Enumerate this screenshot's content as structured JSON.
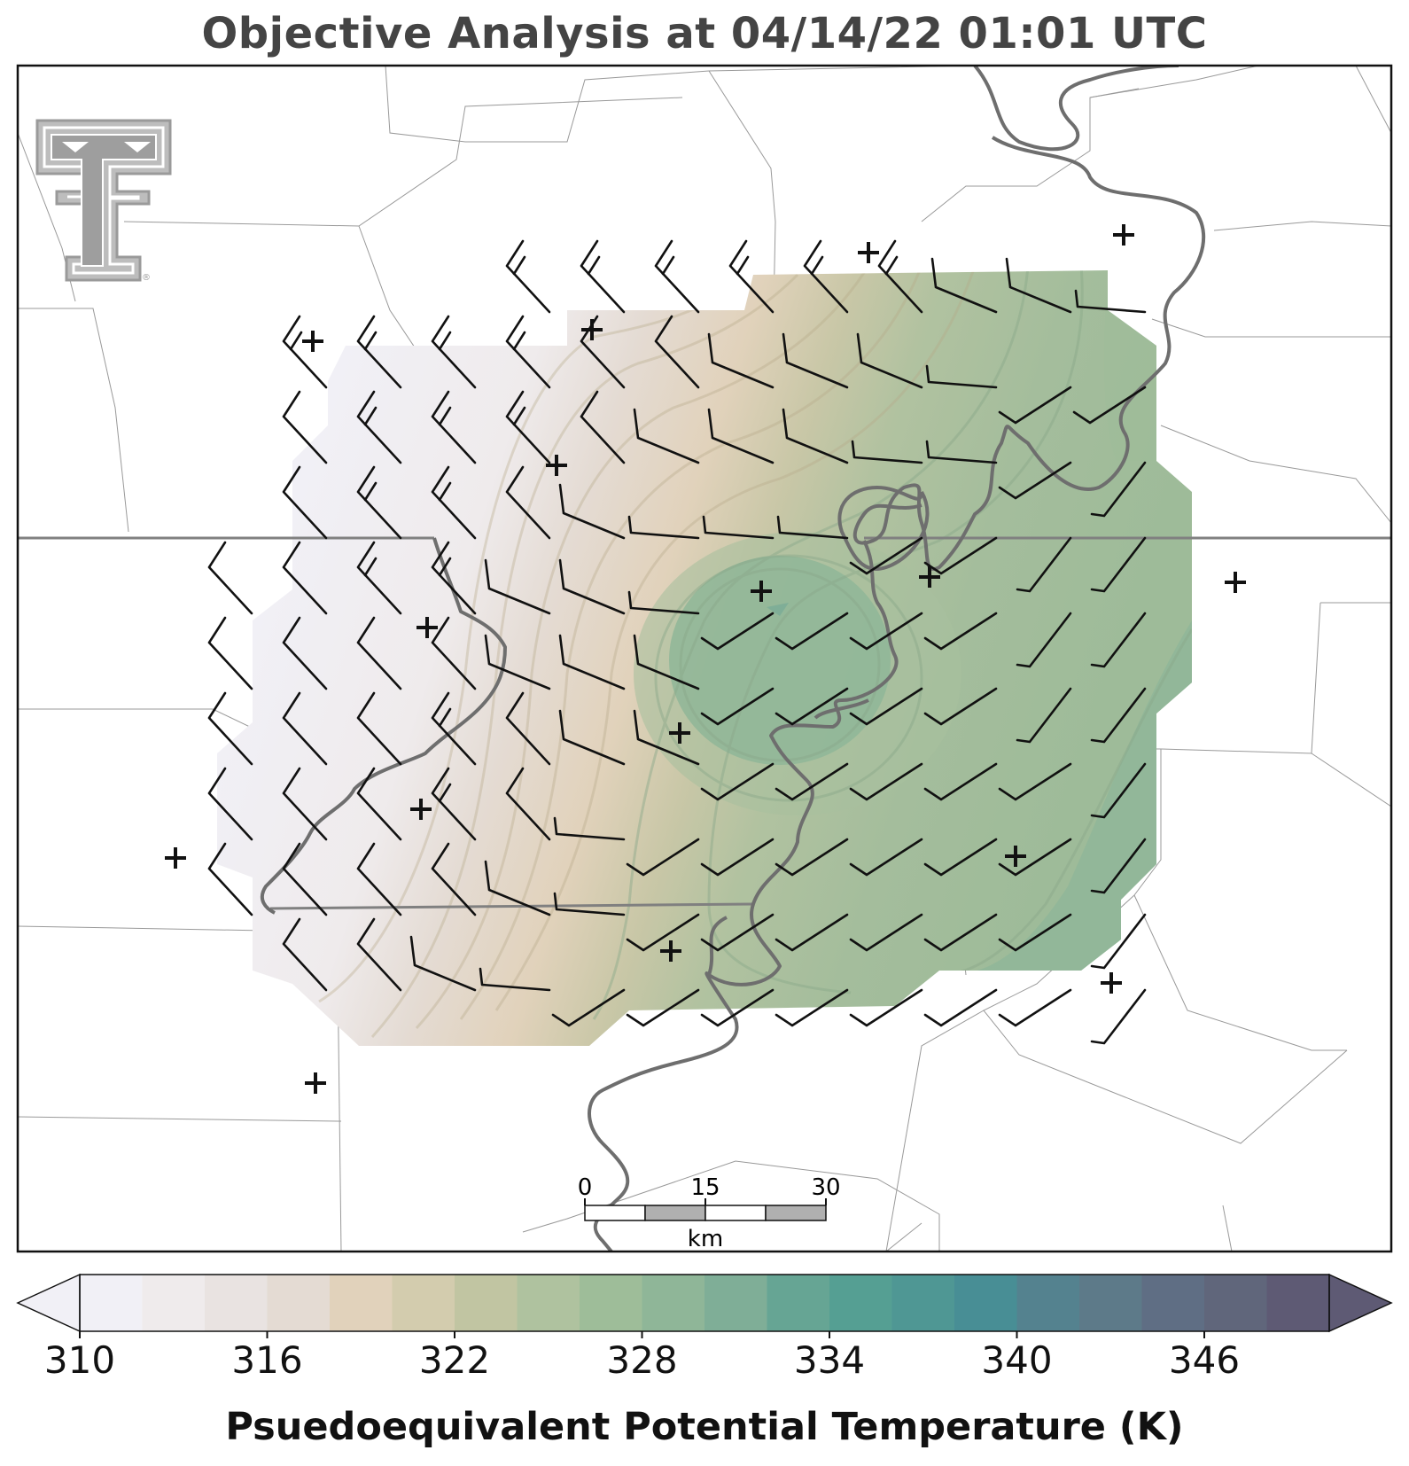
{
  "title": "Objective Analysis at 04/14/22 01:01 UTC",
  "logo": {
    "name": "texas-tech-double-t-logo",
    "text": "®"
  },
  "scale_bar": {
    "ticks": [
      "0",
      "15",
      "30"
    ],
    "unit": "km"
  },
  "colorbar": {
    "label": "Psuedoequivalent Potential Temperature (K)",
    "min": 310,
    "max": 350,
    "step": 2,
    "tick_labels": [
      "310",
      "316",
      "322",
      "328",
      "334",
      "340",
      "346"
    ],
    "extend": "both",
    "colors": [
      "#f1f0f6",
      "#efebec",
      "#e9e3e1",
      "#e4dbd3",
      "#e1d2bb",
      "#d3ccae",
      "#c1c5a2",
      "#afc29f",
      "#9ebd99",
      "#8fb698",
      "#7fae97",
      "#66a594",
      "#559f93",
      "#4f9794",
      "#488e95",
      "#54828f",
      "#5d7a89",
      "#5f6e84",
      "#60667b",
      "#5e5a74"
    ],
    "extend_low_color": "#f1f0f6",
    "extend_high_color": "#5e5a74"
  },
  "analysis": {
    "field": "pseudoequivalent potential temperature",
    "units": "K",
    "station_marker": "+",
    "wind_barbs": "shown"
  }
}
